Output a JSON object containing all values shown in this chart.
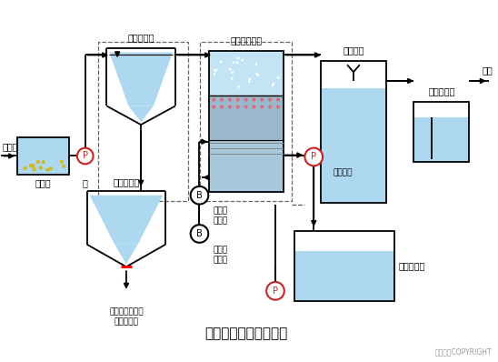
{
  "title": "生物滤池污水处理系统",
  "copyright": "东方仿真COPYRIGHT",
  "bg_color": "#ffffff",
  "water_color": "#add8f0",
  "labels": {
    "primary_tank": "初次沉淀池",
    "bio_filter": "曝气生物滤池",
    "treated_tank": "处理水池",
    "ozone_tank": "投氧混合池",
    "grit_tank": "沉砂池",
    "pump_label": "泵",
    "sludge_tank": "污泥浓缩池",
    "backwash_tank": "反冲洗水池",
    "raw_water": "原污水",
    "discharge": "放流",
    "backwash_water": "反冲洗水",
    "backwash_comp": "反冲用\n空压机",
    "aeration_comp": "曝气用\n空压机",
    "sludge_out": "污泥处理设备或\n系统外排放"
  }
}
